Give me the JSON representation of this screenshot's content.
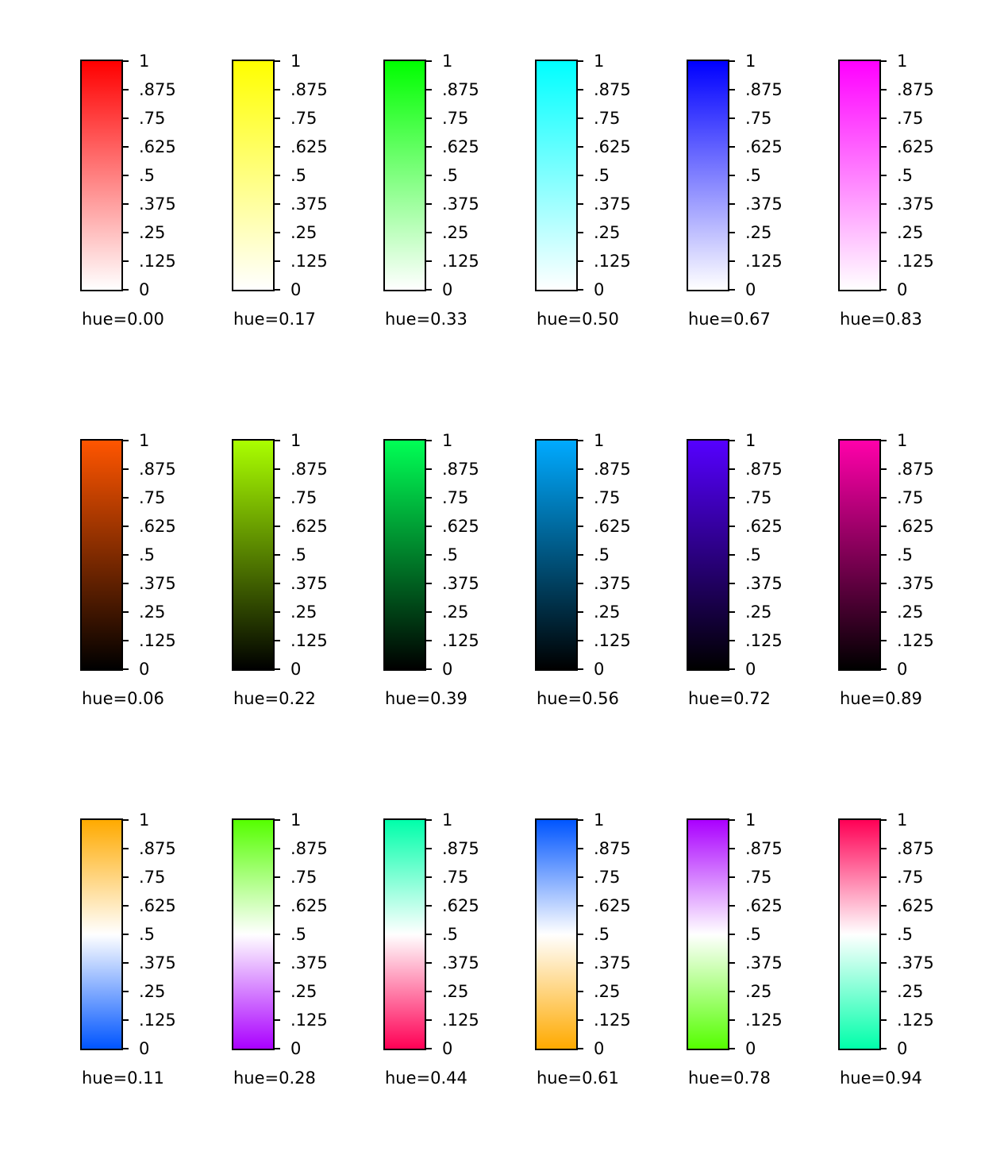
{
  "tick_labels": [
    "1",
    ".875",
    ".75",
    ".625",
    ".5",
    ".375",
    ".25",
    ".125",
    "0"
  ],
  "panels": [
    {
      "caption": "hue=0.00",
      "stops": [
        "#ff0000",
        "#ffffff"
      ]
    },
    {
      "caption": "hue=0.17",
      "stops": [
        "#ffff00",
        "#ffffff"
      ]
    },
    {
      "caption": "hue=0.33",
      "stops": [
        "#00ff00",
        "#ffffff"
      ]
    },
    {
      "caption": "hue=0.50",
      "stops": [
        "#00ffff",
        "#ffffff"
      ]
    },
    {
      "caption": "hue=0.67",
      "stops": [
        "#0000ff",
        "#ffffff"
      ]
    },
    {
      "caption": "hue=0.83",
      "stops": [
        "#ff00ff",
        "#ffffff"
      ]
    },
    {
      "caption": "hue=0.06",
      "stops": [
        "#ff5500",
        "#000000"
      ]
    },
    {
      "caption": "hue=0.22",
      "stops": [
        "#aaff00",
        "#000000"
      ]
    },
    {
      "caption": "hue=0.39",
      "stops": [
        "#00ff55",
        "#000000"
      ]
    },
    {
      "caption": "hue=0.56",
      "stops": [
        "#00aaff",
        "#000000"
      ]
    },
    {
      "caption": "hue=0.72",
      "stops": [
        "#5500ff",
        "#000000"
      ]
    },
    {
      "caption": "hue=0.89",
      "stops": [
        "#ff00aa",
        "#000000"
      ]
    },
    {
      "caption": "hue=0.11",
      "stops": [
        "#ffaa00",
        "#ffffff",
        "#0055ff"
      ]
    },
    {
      "caption": "hue=0.28",
      "stops": [
        "#55ff00",
        "#ffffff",
        "#aa00ff"
      ]
    },
    {
      "caption": "hue=0.44",
      "stops": [
        "#00ffaa",
        "#ffffff",
        "#ff0055"
      ]
    },
    {
      "caption": "hue=0.61",
      "stops": [
        "#0055ff",
        "#ffffff",
        "#ffaa00"
      ]
    },
    {
      "caption": "hue=0.78",
      "stops": [
        "#aa00ff",
        "#ffffff",
        "#55ff00"
      ]
    },
    {
      "caption": "hue=0.94",
      "stops": [
        "#ff0055",
        "#ffffff",
        "#00ffaa"
      ]
    }
  ]
}
